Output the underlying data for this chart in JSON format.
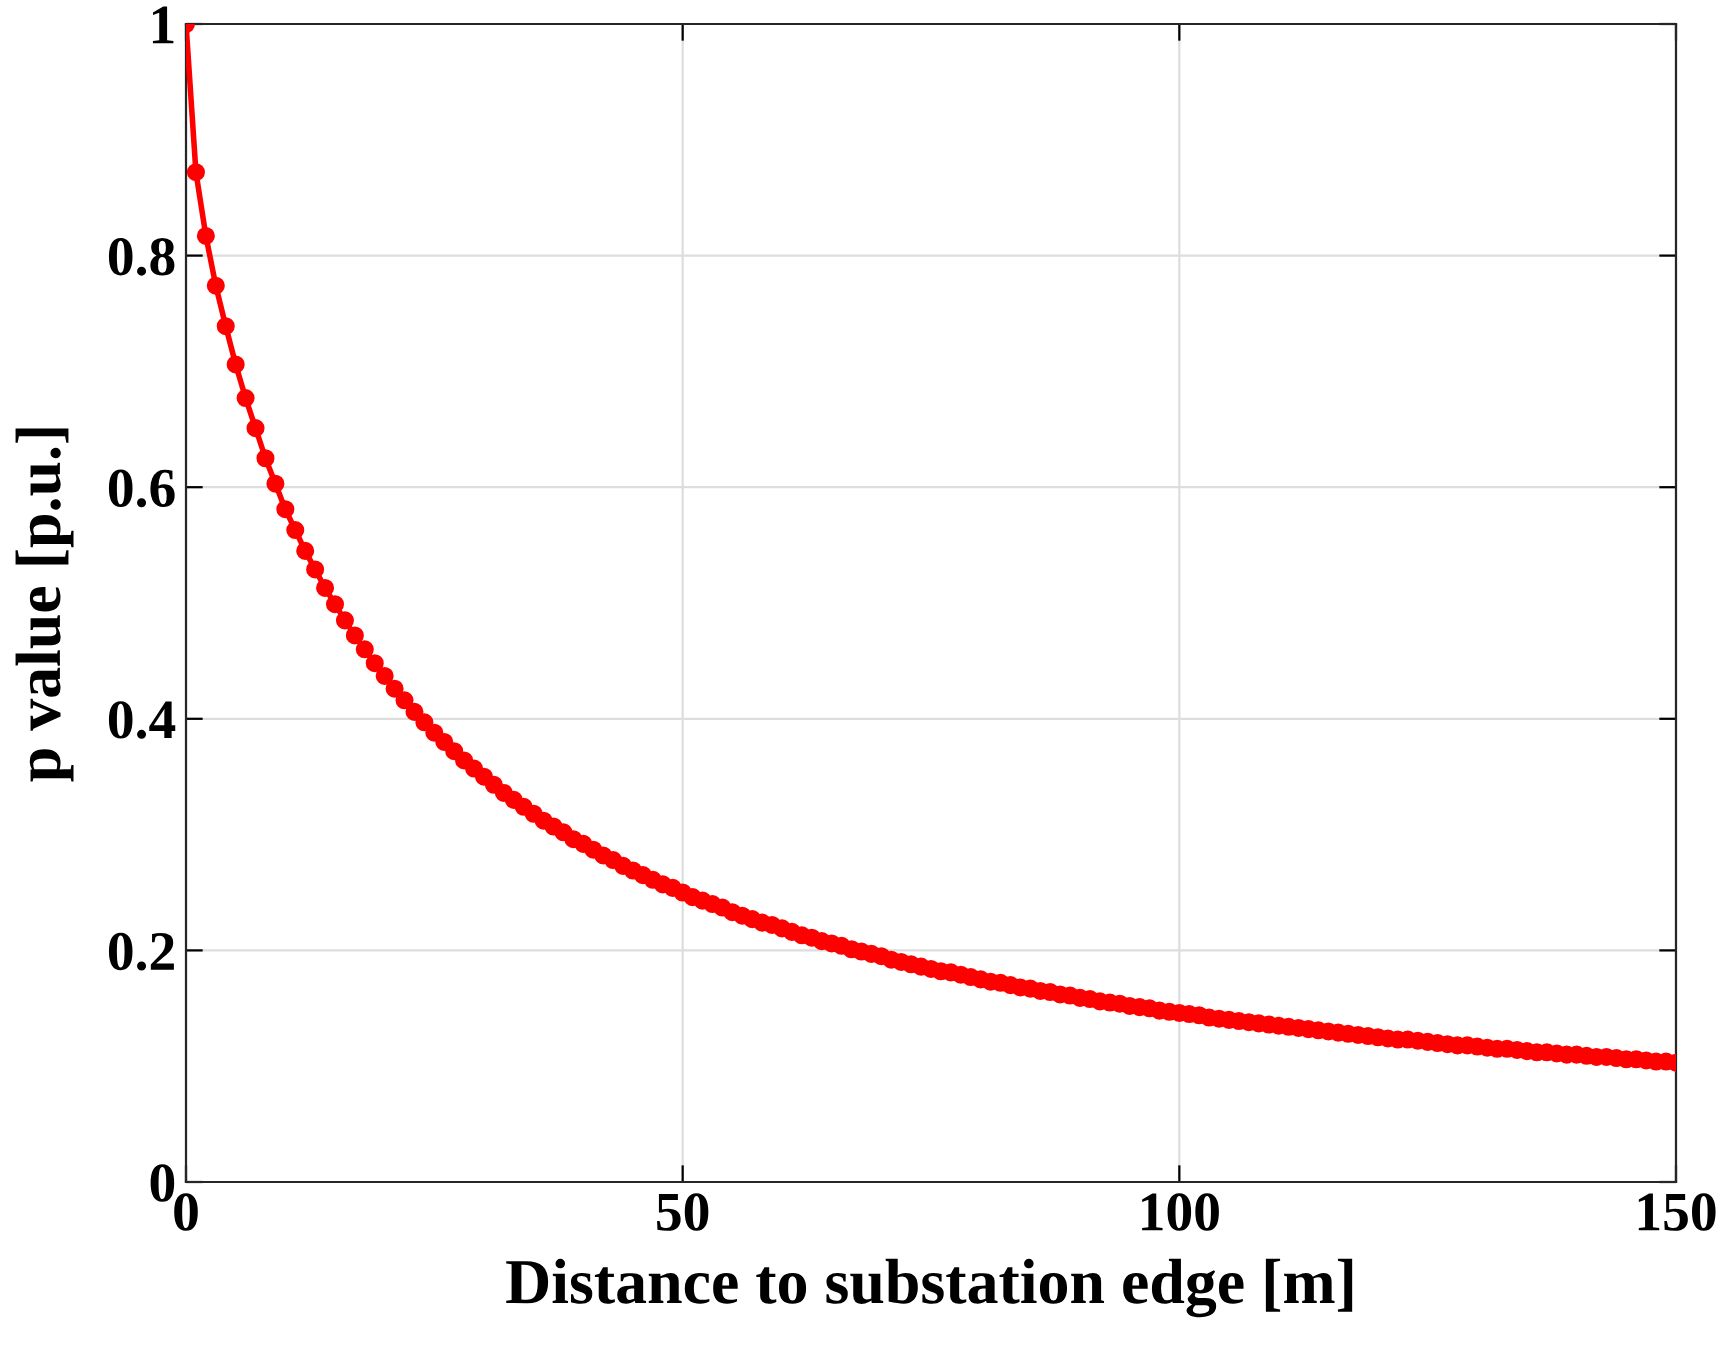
{
  "chart_data": {
    "type": "line",
    "xlabel": "Distance to substation edge [m]",
    "ylabel": "p value [p.u.]",
    "xlim": [
      0,
      150
    ],
    "xticks": [
      0,
      50,
      100,
      150
    ],
    "ylim": [
      0,
      1
    ],
    "yticks": [
      0,
      0.2,
      0.4,
      0.6,
      0.8,
      1
    ],
    "grid": true,
    "marker": "circle",
    "line_style": "solid",
    "series": [
      {
        "color": "#ff0000",
        "x": [
          0,
          1,
          2,
          3,
          4,
          5,
          6,
          7,
          8,
          9,
          10,
          11,
          12,
          13,
          14,
          15,
          16,
          17,
          18,
          19,
          20,
          21,
          22,
          23,
          24,
          25,
          26,
          27,
          28,
          29,
          30,
          31,
          32,
          33,
          34,
          35,
          36,
          37,
          38,
          39,
          40,
          41,
          42,
          43,
          44,
          45,
          46,
          47,
          48,
          49,
          50,
          51,
          52,
          53,
          54,
          55,
          56,
          57,
          58,
          59,
          60,
          61,
          62,
          63,
          64,
          65,
          66,
          67,
          68,
          69,
          70,
          71,
          72,
          73,
          74,
          75,
          76,
          77,
          78,
          79,
          80,
          81,
          82,
          83,
          84,
          85,
          86,
          87,
          88,
          89,
          90,
          91,
          92,
          93,
          94,
          95,
          96,
          97,
          98,
          99,
          100,
          101,
          102,
          103,
          104,
          105,
          106,
          107,
          108,
          109,
          110,
          111,
          112,
          113,
          114,
          115,
          116,
          117,
          118,
          119,
          120,
          121,
          122,
          123,
          124,
          125,
          126,
          127,
          128,
          129,
          130,
          131,
          132,
          133,
          134,
          135,
          136,
          137,
          138,
          139,
          140,
          141,
          142,
          143,
          144,
          145,
          146,
          147,
          148,
          149,
          150
        ],
        "values": [
          1.0,
          0.872,
          0.817,
          0.774,
          0.739,
          0.706,
          0.677,
          0.651,
          0.625,
          0.603,
          0.581,
          0.563,
          0.545,
          0.529,
          0.513,
          0.499,
          0.485,
          0.472,
          0.46,
          0.448,
          0.437,
          0.426,
          0.416,
          0.406,
          0.397,
          0.388,
          0.38,
          0.372,
          0.364,
          0.357,
          0.35,
          0.343,
          0.336,
          0.33,
          0.324,
          0.318,
          0.312,
          0.307,
          0.302,
          0.296,
          0.292,
          0.287,
          0.282,
          0.278,
          0.273,
          0.269,
          0.265,
          0.261,
          0.257,
          0.254,
          0.25,
          0.246,
          0.243,
          0.24,
          0.237,
          0.233,
          0.23,
          0.227,
          0.224,
          0.222,
          0.219,
          0.216,
          0.213,
          0.211,
          0.208,
          0.206,
          0.204,
          0.201,
          0.199,
          0.197,
          0.195,
          0.192,
          0.19,
          0.188,
          0.186,
          0.184,
          0.182,
          0.181,
          0.179,
          0.177,
          0.175,
          0.173,
          0.172,
          0.17,
          0.168,
          0.167,
          0.165,
          0.164,
          0.162,
          0.161,
          0.159,
          0.158,
          0.156,
          0.155,
          0.154,
          0.152,
          0.151,
          0.15,
          0.148,
          0.147,
          0.146,
          0.145,
          0.144,
          0.142,
          0.141,
          0.14,
          0.139,
          0.138,
          0.137,
          0.136,
          0.135,
          0.134,
          0.133,
          0.132,
          0.131,
          0.13,
          0.129,
          0.128,
          0.127,
          0.126,
          0.125,
          0.124,
          0.123,
          0.123,
          0.122,
          0.121,
          0.12,
          0.119,
          0.118,
          0.118,
          0.117,
          0.116,
          0.115,
          0.115,
          0.114,
          0.113,
          0.112,
          0.112,
          0.111,
          0.11,
          0.11,
          0.109,
          0.108,
          0.108,
          0.107,
          0.106,
          0.106,
          0.105,
          0.104,
          0.104,
          0.103
        ]
      }
    ]
  }
}
